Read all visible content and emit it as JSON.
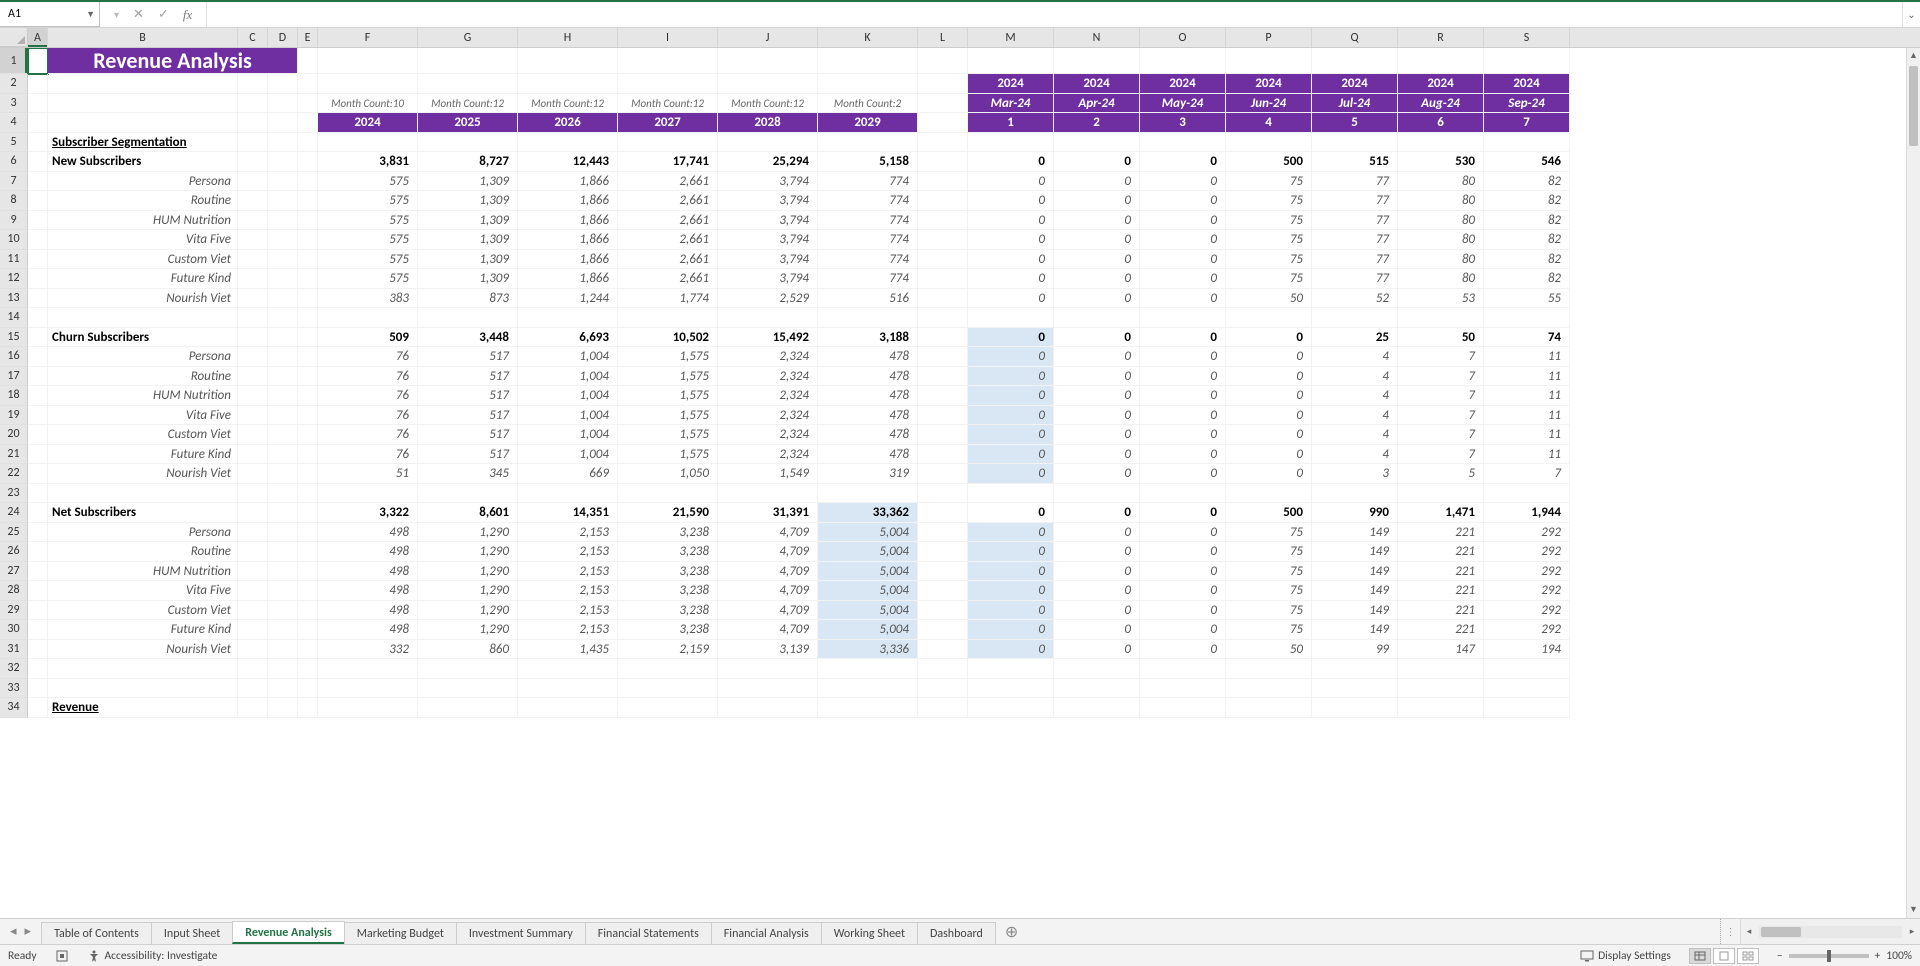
{
  "nameBox": "A1",
  "formula": "",
  "columns": [
    "A",
    "B",
    "C",
    "D",
    "E",
    "F",
    "G",
    "H",
    "I",
    "J",
    "K",
    "L",
    "M",
    "N",
    "O",
    "P",
    "Q",
    "R",
    "S"
  ],
  "colWidths": [
    "cA",
    "cB",
    "cC",
    "cD",
    "cE",
    "cF",
    "cG",
    "cH",
    "cI",
    "cJ",
    "cK",
    "cL",
    "cM",
    "cN",
    "cO",
    "cP",
    "cQ",
    "cR",
    "cS"
  ],
  "title": "Revenue Analysis",
  "monthCountLabels": [
    "Month Count:10",
    "Month Count:12",
    "Month Count:12",
    "Month Count:12",
    "Month Count:12",
    "Month Count:2"
  ],
  "yearHeaders": [
    "2024",
    "2025",
    "2026",
    "2027",
    "2028",
    "2029"
  ],
  "monthYearTop": [
    "2024",
    "2024",
    "2024",
    "2024",
    "2024",
    "2024",
    "2024"
  ],
  "monthLabels": [
    "Mar-24",
    "Apr-24",
    "May-24",
    "Jun-24",
    "Jul-24",
    "Aug-24",
    "Sep-24"
  ],
  "monthNumbers": [
    "1",
    "2",
    "3",
    "4",
    "5",
    "6",
    "7"
  ],
  "section1": "Subscriber Segmentation",
  "groups": [
    {
      "title": "New Subscribers",
      "totals": [
        "3,831",
        "8,727",
        "12,443",
        "17,741",
        "25,294",
        "5,158",
        "",
        "0",
        "0",
        "0",
        "500",
        "515",
        "530",
        "546"
      ],
      "rows": [
        {
          "label": "Persona",
          "y": [
            "575",
            "1,309",
            "1,866",
            "2,661",
            "3,794",
            "774"
          ],
          "m": [
            "0",
            "0",
            "0",
            "75",
            "77",
            "80",
            "82"
          ]
        },
        {
          "label": "Routine",
          "y": [
            "575",
            "1,309",
            "1,866",
            "2,661",
            "3,794",
            "774"
          ],
          "m": [
            "0",
            "0",
            "0",
            "75",
            "77",
            "80",
            "82"
          ]
        },
        {
          "label": "HUM Nutrition",
          "y": [
            "575",
            "1,309",
            "1,866",
            "2,661",
            "3,794",
            "774"
          ],
          "m": [
            "0",
            "0",
            "0",
            "75",
            "77",
            "80",
            "82"
          ]
        },
        {
          "label": "Vita Five",
          "y": [
            "575",
            "1,309",
            "1,866",
            "2,661",
            "3,794",
            "774"
          ],
          "m": [
            "0",
            "0",
            "0",
            "75",
            "77",
            "80",
            "82"
          ]
        },
        {
          "label": "Custom Viet",
          "y": [
            "575",
            "1,309",
            "1,866",
            "2,661",
            "3,794",
            "774"
          ],
          "m": [
            "0",
            "0",
            "0",
            "75",
            "77",
            "80",
            "82"
          ]
        },
        {
          "label": "Future Kind",
          "y": [
            "575",
            "1,309",
            "1,866",
            "2,661",
            "3,794",
            "774"
          ],
          "m": [
            "0",
            "0",
            "0",
            "75",
            "77",
            "80",
            "82"
          ]
        },
        {
          "label": "Nourish Viet",
          "y": [
            "383",
            "873",
            "1,244",
            "1,774",
            "2,529",
            "516"
          ],
          "m": [
            "0",
            "0",
            "0",
            "50",
            "52",
            "53",
            "55"
          ]
        }
      ]
    },
    {
      "title": "Churn Subscribers",
      "totals": [
        "509",
        "3,448",
        "6,693",
        "10,502",
        "15,492",
        "3,188",
        "",
        "0",
        "0",
        "0",
        "0",
        "25",
        "50",
        "74"
      ],
      "hlM0Total": true,
      "rows": [
        {
          "label": "Persona",
          "y": [
            "76",
            "517",
            "1,004",
            "1,575",
            "2,324",
            "478"
          ],
          "m": [
            "0",
            "0",
            "0",
            "0",
            "4",
            "7",
            "11"
          ],
          "hlM0": true
        },
        {
          "label": "Routine",
          "y": [
            "76",
            "517",
            "1,004",
            "1,575",
            "2,324",
            "478"
          ],
          "m": [
            "0",
            "0",
            "0",
            "0",
            "4",
            "7",
            "11"
          ],
          "hlM0": true
        },
        {
          "label": "HUM Nutrition",
          "y": [
            "76",
            "517",
            "1,004",
            "1,575",
            "2,324",
            "478"
          ],
          "m": [
            "0",
            "0",
            "0",
            "0",
            "4",
            "7",
            "11"
          ],
          "hlM0": true
        },
        {
          "label": "Vita Five",
          "y": [
            "76",
            "517",
            "1,004",
            "1,575",
            "2,324",
            "478"
          ],
          "m": [
            "0",
            "0",
            "0",
            "0",
            "4",
            "7",
            "11"
          ],
          "hlM0": true
        },
        {
          "label": "Custom Viet",
          "y": [
            "76",
            "517",
            "1,004",
            "1,575",
            "2,324",
            "478"
          ],
          "m": [
            "0",
            "0",
            "0",
            "0",
            "4",
            "7",
            "11"
          ],
          "hlM0": true
        },
        {
          "label": "Future Kind",
          "y": [
            "76",
            "517",
            "1,004",
            "1,575",
            "2,324",
            "478"
          ],
          "m": [
            "0",
            "0",
            "0",
            "0",
            "4",
            "7",
            "11"
          ],
          "hlM0": true
        },
        {
          "label": "Nourish Viet",
          "y": [
            "51",
            "345",
            "669",
            "1,050",
            "1,549",
            "319"
          ],
          "m": [
            "0",
            "0",
            "0",
            "0",
            "3",
            "5",
            "7"
          ],
          "hlM0": true
        }
      ]
    },
    {
      "title": "Net Subscribers",
      "totals": [
        "3,322",
        "8,601",
        "14,351",
        "21,590",
        "31,391",
        "33,362",
        "",
        "0",
        "0",
        "0",
        "500",
        "990",
        "1,471",
        "1,944"
      ],
      "hlK": true,
      "rows": [
        {
          "label": "Persona",
          "y": [
            "498",
            "1,290",
            "2,153",
            "3,238",
            "4,709",
            "5,004"
          ],
          "m": [
            "0",
            "0",
            "0",
            "75",
            "149",
            "221",
            "292"
          ],
          "hlKsub": true,
          "hlM0": true
        },
        {
          "label": "Routine",
          "y": [
            "498",
            "1,290",
            "2,153",
            "3,238",
            "4,709",
            "5,004"
          ],
          "m": [
            "0",
            "0",
            "0",
            "75",
            "149",
            "221",
            "292"
          ],
          "hlKsub": true,
          "hlM0": true
        },
        {
          "label": "HUM Nutrition",
          "y": [
            "498",
            "1,290",
            "2,153",
            "3,238",
            "4,709",
            "5,004"
          ],
          "m": [
            "0",
            "0",
            "0",
            "75",
            "149",
            "221",
            "292"
          ],
          "hlKsub": true,
          "hlM0": true
        },
        {
          "label": "Vita Five",
          "y": [
            "498",
            "1,290",
            "2,153",
            "3,238",
            "4,709",
            "5,004"
          ],
          "m": [
            "0",
            "0",
            "0",
            "75",
            "149",
            "221",
            "292"
          ],
          "hlKsub": true,
          "hlM0": true
        },
        {
          "label": "Custom Viet",
          "y": [
            "498",
            "1,290",
            "2,153",
            "3,238",
            "4,709",
            "5,004"
          ],
          "m": [
            "0",
            "0",
            "0",
            "75",
            "149",
            "221",
            "292"
          ],
          "hlKsub": true,
          "hlM0": true
        },
        {
          "label": "Future Kind",
          "y": [
            "498",
            "1,290",
            "2,153",
            "3,238",
            "4,709",
            "5,004"
          ],
          "m": [
            "0",
            "0",
            "0",
            "75",
            "149",
            "221",
            "292"
          ],
          "hlKsub": true,
          "hlM0": true
        },
        {
          "label": "Nourish Viet",
          "y": [
            "332",
            "860",
            "1,435",
            "2,159",
            "3,139",
            "3,336"
          ],
          "m": [
            "0",
            "0",
            "0",
            "50",
            "99",
            "147",
            "194"
          ],
          "hlKsub": true,
          "hlM0": true
        }
      ]
    }
  ],
  "revenueLabel": "Revenue",
  "tabs": [
    "Table of Contents",
    "Input Sheet",
    "Revenue Analysis",
    "Marketing Budget",
    "Investment Summary",
    "Financial Statements",
    "Financial Analysis",
    "Working Sheet",
    "Dashboard"
  ],
  "activeTab": 2,
  "status": {
    "ready": "Ready",
    "accessibility": "Accessibility: Investigate",
    "display": "Display Settings",
    "zoom": "100%"
  },
  "colors": {
    "purple": "#702fa0",
    "excelGreen": "#217346",
    "highlight": "#d9e7f5"
  }
}
